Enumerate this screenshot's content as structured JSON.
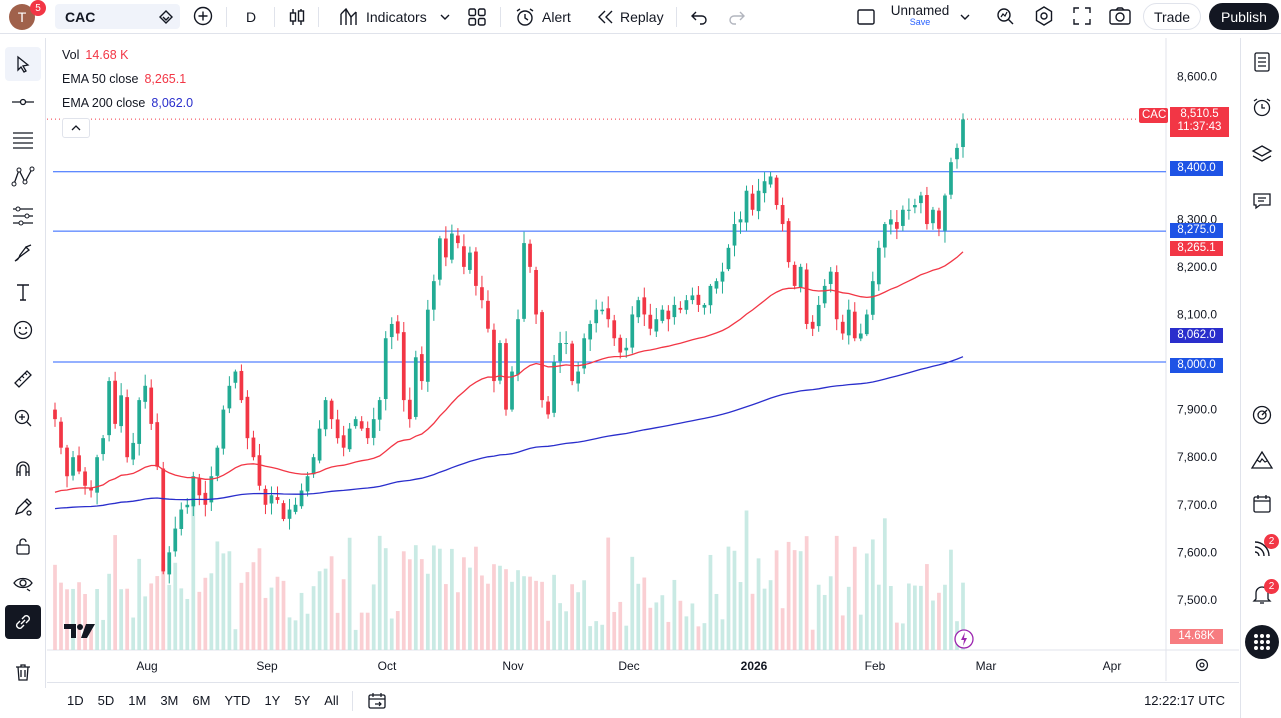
{
  "header": {
    "avatar_letter": "T",
    "avatar_badge": "5",
    "symbol": "CAC",
    "interval": "D",
    "indicators_label": "Indicators",
    "alert_label": "Alert",
    "replay_label": "Replay",
    "layout_name": "Unnamed",
    "layout_save": "Save",
    "trade_label": "Trade",
    "publish_label": "Publish"
  },
  "legend": {
    "vol_label": "Vol",
    "vol_value": "14.68 K",
    "ema50_label": "EMA 50 close",
    "ema50_value": "8,265.1",
    "ema200_label": "EMA 200 close",
    "ema200_value": "8,062.0"
  },
  "price_axis": {
    "ticks": [
      "8,600.0",
      "8,300.0",
      "8,200.0",
      "8,100.0",
      "7,900.0",
      "7,800.0",
      "7,700.0",
      "7,600.0",
      "7,500.0"
    ],
    "current_symbol": "CAC",
    "current_price": "8,510.5",
    "countdown": "11:37:43",
    "level_8400": "8,400.0",
    "level_8275": "8,275.0",
    "ema50_tag": "8,265.1",
    "ema200_tag": "8,062.0",
    "level_8000": "8,000.0",
    "volume_tag": "14.68K"
  },
  "time_axis": {
    "labels": [
      "Aug",
      "Sep",
      "Oct",
      "Nov",
      "Dec",
      "2026",
      "Feb",
      "Mar",
      "Apr"
    ]
  },
  "bottom": {
    "ranges": [
      "1D",
      "5D",
      "1M",
      "3M",
      "6M",
      "YTD",
      "1Y",
      "5Y",
      "All"
    ],
    "clock": "12:22:17 UTC"
  },
  "right_toolbar": {
    "news_badge": "2",
    "alerts_badge": "2"
  },
  "colors": {
    "up": "#22ab94",
    "down": "#f23645",
    "ema50": "#f23645",
    "ema200": "#2a2ecc",
    "hline": "#2962ff"
  },
  "chart_data": {
    "type": "candlestick",
    "price_range": [
      7420,
      8660
    ],
    "horizontal_levels": [
      8400,
      8275,
      8000
    ],
    "last_price": 8510.5,
    "ema50_last": 8265.1,
    "ema200_last": 8062.0,
    "closes": [
      7880,
      7820,
      7760,
      7800,
      7770,
      7740,
      7730,
      7800,
      7840,
      7960,
      7870,
      7930,
      7800,
      7830,
      7920,
      7950,
      7870,
      7780,
      7560,
      7600,
      7650,
      7690,
      7700,
      7760,
      7720,
      7700,
      7760,
      7820,
      7900,
      7950,
      7980,
      7920,
      7840,
      7800,
      7740,
      7700,
      7720,
      7710,
      7670,
      7690,
      7700,
      7730,
      7760,
      7800,
      7860,
      7920,
      7880,
      7840,
      7820,
      7860,
      7880,
      7860,
      7840,
      7880,
      7920,
      8050,
      8080,
      8060,
      7920,
      7880,
      8010,
      7960,
      8110,
      8170,
      8260,
      8220,
      8270,
      8250,
      8200,
      8230,
      8160,
      8130,
      8070,
      7960,
      8040,
      7900,
      7980,
      8090,
      8250,
      8200,
      8100,
      7920,
      7890,
      8000,
      8040,
      8040,
      7960,
      7980,
      8050,
      8080,
      8110,
      8110,
      8090,
      8050,
      8020,
      8030,
      8100,
      8130,
      8100,
      8070,
      8090,
      8110,
      8090,
      8120,
      8110,
      8130,
      8140,
      8120,
      8120,
      8160,
      8170,
      8190,
      8240,
      8290,
      8300,
      8360,
      8320,
      8360,
      8380,
      8390,
      8330,
      8290,
      8210,
      8160,
      8200,
      8080,
      8070,
      8120,
      8160,
      8190,
      8090,
      8060,
      8110,
      8050,
      8060,
      8100,
      8170,
      8240,
      8290,
      8300,
      8280,
      8320,
      8320,
      8330,
      8350,
      8290,
      8320,
      8280,
      8350,
      8420,
      8450,
      8510
    ]
  }
}
